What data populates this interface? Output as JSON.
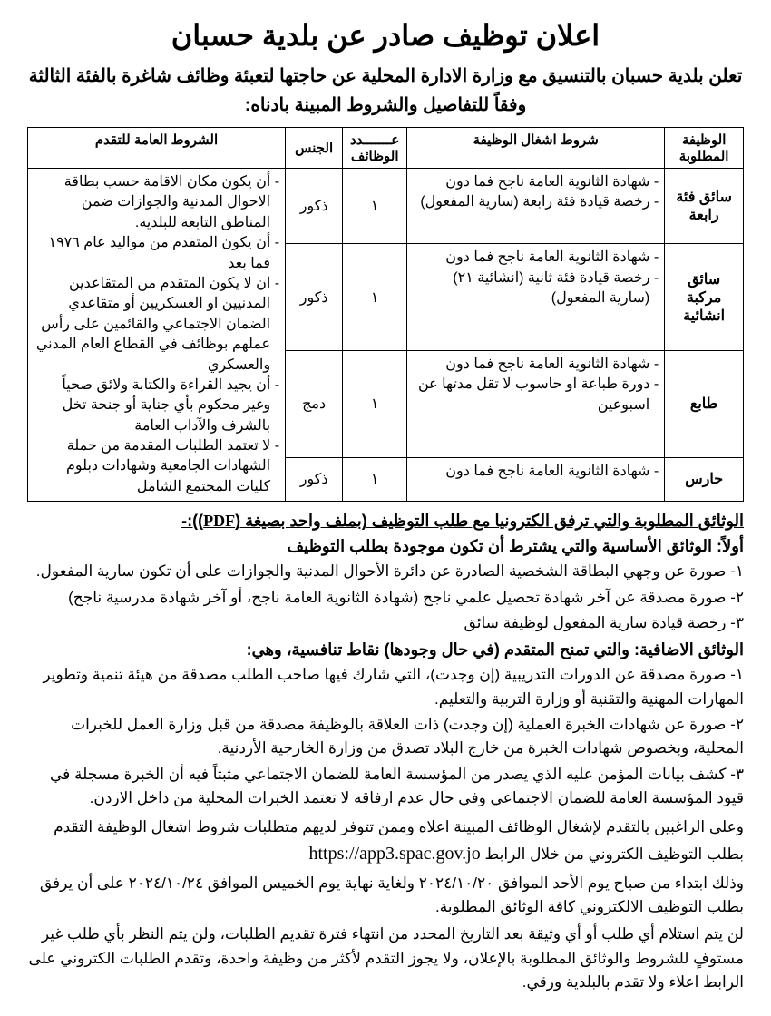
{
  "title": "اعلان توظيف صادر عن بلدية حسبان",
  "intro": "تعلن بلدية حسبان بالتنسيق مع وزارة الادارة المحلية عن حاجتها لتعبئة وظائف شاغرة بالفئة الثالثة وفقاً للتفاصيل والشروط المبينة بادناه:",
  "table": {
    "headers": {
      "job": "الوظيفة المطلوبة",
      "req": "شروط اشغال الوظيفة",
      "num": "عـــــــدد الوظائف",
      "gender": "الجنس",
      "general": "الشروط العامة للتقدم"
    },
    "rows": [
      {
        "job": "سائق فئة رابعة",
        "reqs": [
          "شهادة الثانوية العامة ناجح فما دون",
          "رخصة قيادة فئة رابعة (سارية المفعول)"
        ],
        "num": "١",
        "gender": "ذكور"
      },
      {
        "job": "سائق مركبة انشائية",
        "reqs": [
          "شهادة الثانوية العامة ناجح فما دون",
          "رخصة قيادة فئة ثانية (انشائية ٢١) (سارية المفعول)"
        ],
        "num": "١",
        "gender": "ذكور"
      },
      {
        "job": "طابع",
        "reqs": [
          "شهادة الثانوية العامة ناجح فما دون",
          "دورة طباعة او حاسوب لا تقل مدتها عن اسبوعين"
        ],
        "num": "١",
        "gender": "دمج"
      },
      {
        "job": "حارس",
        "reqs": [
          "شهادة الثانوية العامة ناجح فما دون"
        ],
        "num": "١",
        "gender": "ذكور"
      }
    ],
    "general": [
      "أن يكون مكان الاقامة حسب بطاقة الاحوال المدنية والجوازات ضمن المناطق التابعة للبلدية.",
      "أن يكون المتقدم من مواليد عام ١٩٧٦ فما بعد",
      "ان لا يكون المتقدم من المتقاعدين المدنيين او العسكريين أو متقاعدي الضمان الاجتماعي والقائمين على رأس عملهم بوظائف في القطاع العام المدني والعسكري",
      "أن يجيد القراءة والكتابة ولائق صحياً وغير محكوم بأي جناية أو جنحة تخل بالشرف والآداب العامة",
      "لا تعتمد الطلبات المقدمة من حملة الشهادات الجامعية وشهادات دبلوم كليات المجتمع الشامل"
    ]
  },
  "docs_heading_prefix": "الوثائق المطلوبة والتي ترفق الكترونيا مع طلب التوظيف (بملف واحد بصيغة (",
  "docs_heading_pdf": "PDF",
  "docs_heading_suffix": ")):-",
  "basic_heading": "أولاً: الوثائق الأساسية والتي يشترط أن تكون موجودة بطلب التوظيف",
  "basic_docs": [
    "١- صورة عن وجهي البطاقة الشخصية الصادرة عن دائرة الأحوال المدنية والجوازات على أن تكون سارية المفعول.",
    "٢- صورة مصدقة عن آخر شهادة تحصيل علمي ناجح (شهادة الثانوية العامة ناجح، أو آخر شهادة مدرسية ناجح)",
    "٣- رخصة قيادة سارية المفعول لوظيفة سائق"
  ],
  "extra_heading": "الوثائق الاضافية: والتي تمنح المتقدم (في حال وجودها) نقاط تنافسية، وهي:",
  "extra_docs": [
    "١- صورة مصدقة عن الدورات التدريبية (إن وجدت)، التي شارك فيها صاحب الطلب مصدقة من هيئة تنمية وتطوير المهارات المهنية والتقنية أو وزارة التربية والتعليم.",
    "٢- صورة عن شهادات الخبرة العملية (إن وجدت) ذات العلاقة بالوظيفة مصدقة من قبل وزارة العمل للخبرات المحلية، وبخصوص شهادات الخبرة من خارج البلاد تصدق من وزارة الخارجية الأردنية.",
    "٣- كشف بيانات المؤمن عليه الذي يصدر من المؤسسة العامة للضمان الاجتماعي مثبتاً فيه أن الخبرة مسجلة في قيود المؤسسة العامة للضمان الاجتماعي وفي حال عدم ارفاقه لا تعتمد الخبرات المحلية من داخل الاردن."
  ],
  "apply_text": "وعلى الراغبين بالتقدم لإشغال الوظائف المبينة اعلاه وممن تتوفر لديهم متطلبات شروط اشغال الوظيفة التقدم بطلب التوظيف الكتروني من خلال الرابط ",
  "url": "https://app3.spac.gov.jo",
  "dates_text": "وذلك ابتداء من صباح يوم الأحد الموافق ٢٠٢٤/١٠/٢٠ ولغاية نهاية يوم الخميس الموافق ٢٠٢٤/١٠/٢٤ على أن يرفق بطلب التوظيف الالكتروني كافة الوثائق المطلوبة.",
  "closing_text": "لن يتم استلام أي طلب أو أي وثيقة بعد التاريخ المحدد من انتهاء فترة تقديم الطلبات، ولن يتم النظر بأي طلب غير مستوفٍ للشروط والوثائق المطلوبة بالإعلان، ولا يجوز التقدم لأكثر من وظيفة واحدة، وتقدم الطلبات الكتروني على الرابط اعلاء ولا تقدم بالبلدية ورقي."
}
